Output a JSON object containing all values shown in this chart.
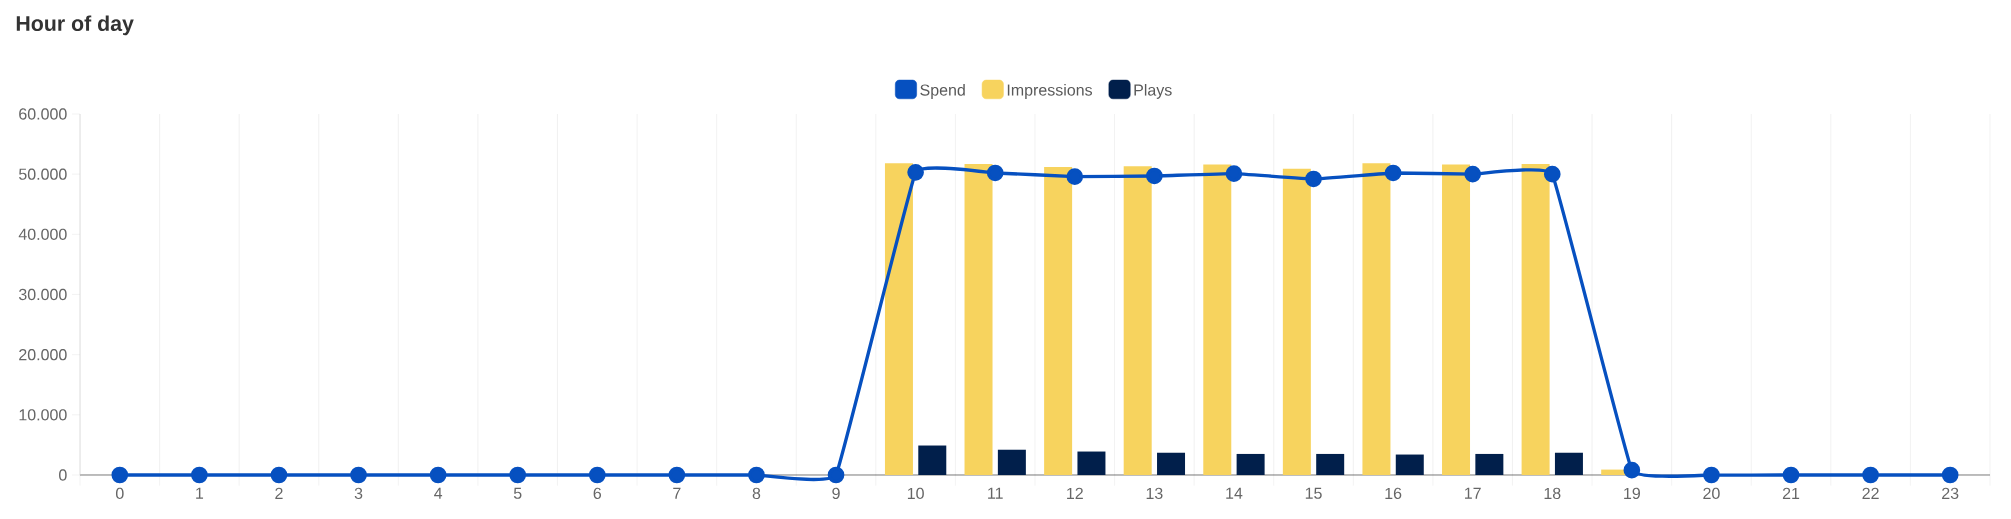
{
  "chart_data": {
    "type": "bar",
    "title": "Hour of day",
    "categories": [
      "0",
      "1",
      "2",
      "3",
      "4",
      "5",
      "6",
      "7",
      "8",
      "9",
      "10",
      "11",
      "12",
      "13",
      "14",
      "15",
      "16",
      "17",
      "18",
      "19",
      "20",
      "21",
      "22",
      "23"
    ],
    "series": [
      {
        "name": "Spend",
        "type": "line",
        "color": "#0650c0",
        "marker": "circle",
        "values": [
          0,
          0,
          0,
          0,
          0,
          0,
          0,
          0,
          0,
          0,
          50300,
          50200,
          49600,
          49700,
          50100,
          49200,
          50200,
          50000,
          50000,
          800,
          0,
          0,
          0,
          0
        ]
      },
      {
        "name": "Impressions",
        "color": "#f7d35e",
        "values": [
          0,
          0,
          0,
          0,
          0,
          0,
          0,
          0,
          0,
          0,
          51800,
          51700,
          51200,
          51300,
          51600,
          50900,
          51800,
          51600,
          51700,
          900,
          0,
          0,
          0,
          0
        ]
      },
      {
        "name": "Plays",
        "color": "#011f4b",
        "values": [
          0,
          0,
          0,
          0,
          0,
          0,
          0,
          0,
          0,
          0,
          4900,
          4200,
          3900,
          3700,
          3500,
          3500,
          3400,
          3500,
          3700,
          0,
          0,
          0,
          0,
          0
        ]
      }
    ],
    "ylim": [
      0,
      60000
    ],
    "yticks": [
      0,
      {
        "value": 10000,
        "label": "10.000"
      },
      {
        "value": 20000,
        "label": "20.000"
      },
      {
        "value": 30000,
        "label": "30.000"
      },
      {
        "value": 40000,
        "label": "40.000"
      },
      {
        "value": 50000,
        "label": "50.000"
      },
      {
        "value": 60000,
        "label": "60.000"
      }
    ],
    "grid": "x",
    "legend": "top"
  }
}
